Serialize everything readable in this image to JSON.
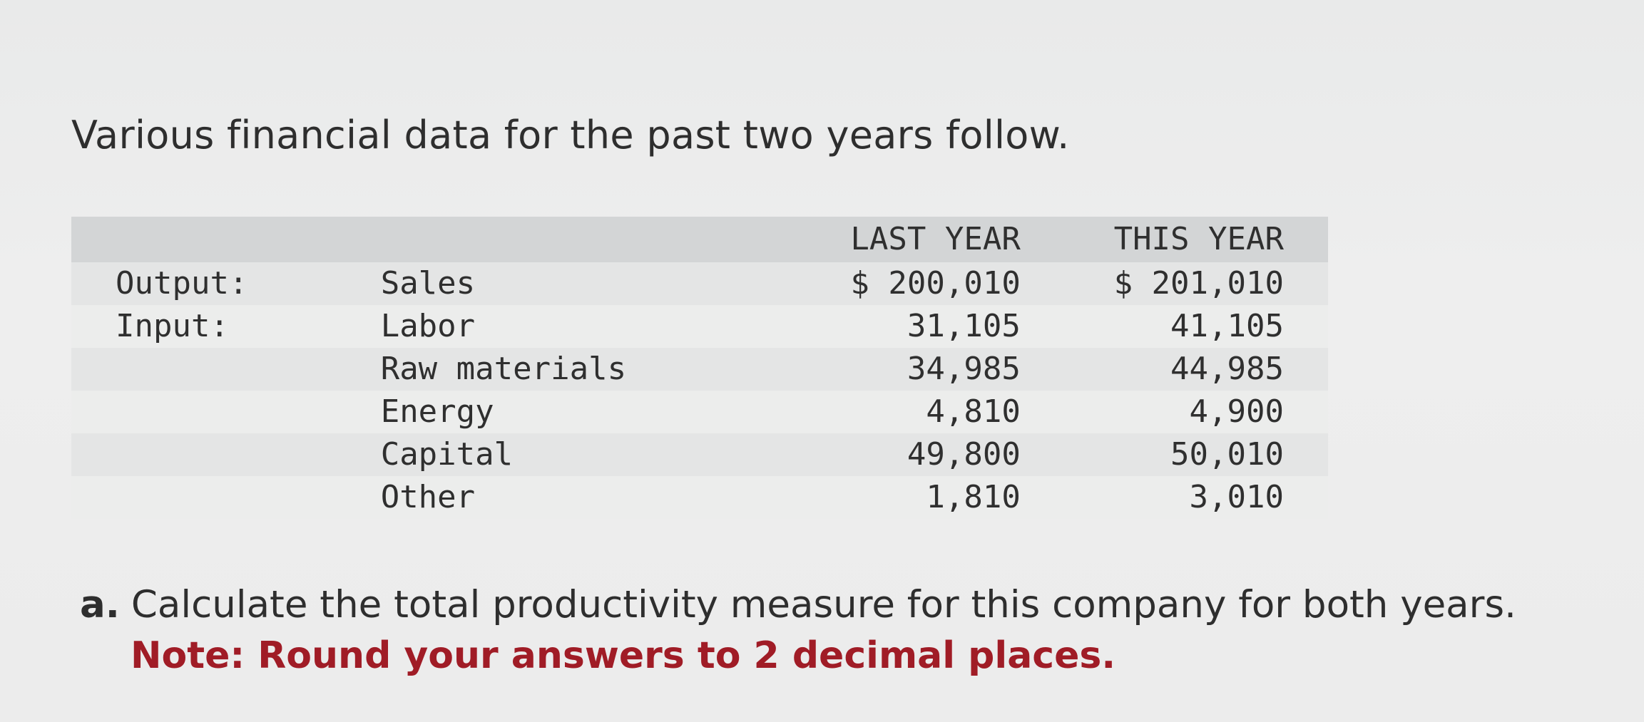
{
  "intro_text": "Various financial data for the past two years follow.",
  "table": {
    "headers": [
      "",
      "",
      "LAST YEAR",
      "THIS YEAR"
    ],
    "rows": [
      [
        "Output:",
        "Sales",
        "$ 200,010",
        "$ 201,010"
      ],
      [
        "Input:",
        "Labor",
        "31,105",
        "41,105"
      ],
      [
        "",
        "Raw materials",
        "34,985",
        "44,985"
      ],
      [
        "",
        "Energy",
        "4,810",
        "4,900"
      ],
      [
        "",
        "Capital",
        "49,800",
        "50,010"
      ],
      [
        "",
        "Other",
        "1,810",
        "3,010"
      ]
    ]
  },
  "question": {
    "label": "a.",
    "text": "Calculate the total productivity measure for this company for both years.",
    "note": "Note: Round your answers to 2 decimal places."
  },
  "colors": {
    "note": "#a01c26",
    "header_band": "#d3d5d6"
  }
}
